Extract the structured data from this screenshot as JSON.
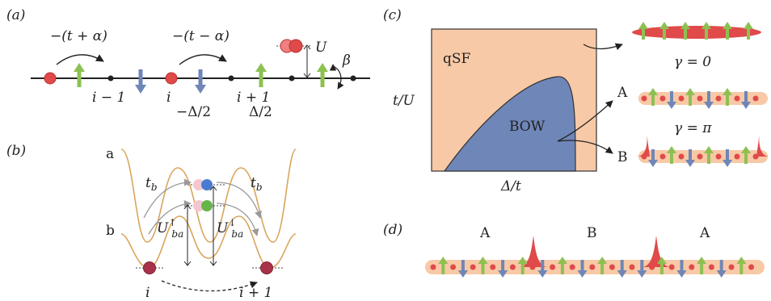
{
  "panel_labels": {
    "a": "(a)",
    "b": "(b)",
    "c": "(c)",
    "d": "(d)"
  },
  "panel_a": {
    "hop1": "−(t + α)",
    "hop2": "−(t − α)",
    "interaction": "U",
    "beta": "β",
    "site_im1": "i − 1",
    "site_i": "i",
    "site_ip1": "i + 1",
    "offset_neg": "−Δ/2",
    "offset_pos": "Δ/2"
  },
  "panel_b": {
    "band_a": "a",
    "band_b": "b",
    "tb_left": "t",
    "tb_right": "t",
    "tb_sub": "b",
    "u_up": "U",
    "u_up_sup": "↑",
    "u_up_sub": "ba",
    "u_down": "U",
    "u_down_sup": "↓",
    "u_down_sub": "ba",
    "site_i": "i",
    "site_ip1": "i + 1"
  },
  "panel_c": {
    "ylabel": "t/U",
    "xlabel": "Δ/t",
    "phase_qsf": "qSF",
    "phase_bow": "BOW",
    "gamma_zero": "γ = 0",
    "gamma_pi": "γ = π",
    "config_a": "A",
    "config_b": "B"
  },
  "panel_d": {
    "label1": "A",
    "label2": "B",
    "label3": "A"
  },
  "colors": {
    "green_arrow": "#8cc152",
    "blue_arrow": "#6f86b8",
    "red": "#e04a4a",
    "peach": "#f8c9a6",
    "qsf_fill": "#f8c9a6",
    "bow_fill": "#6f86b8",
    "potential": "#d9a55b"
  }
}
